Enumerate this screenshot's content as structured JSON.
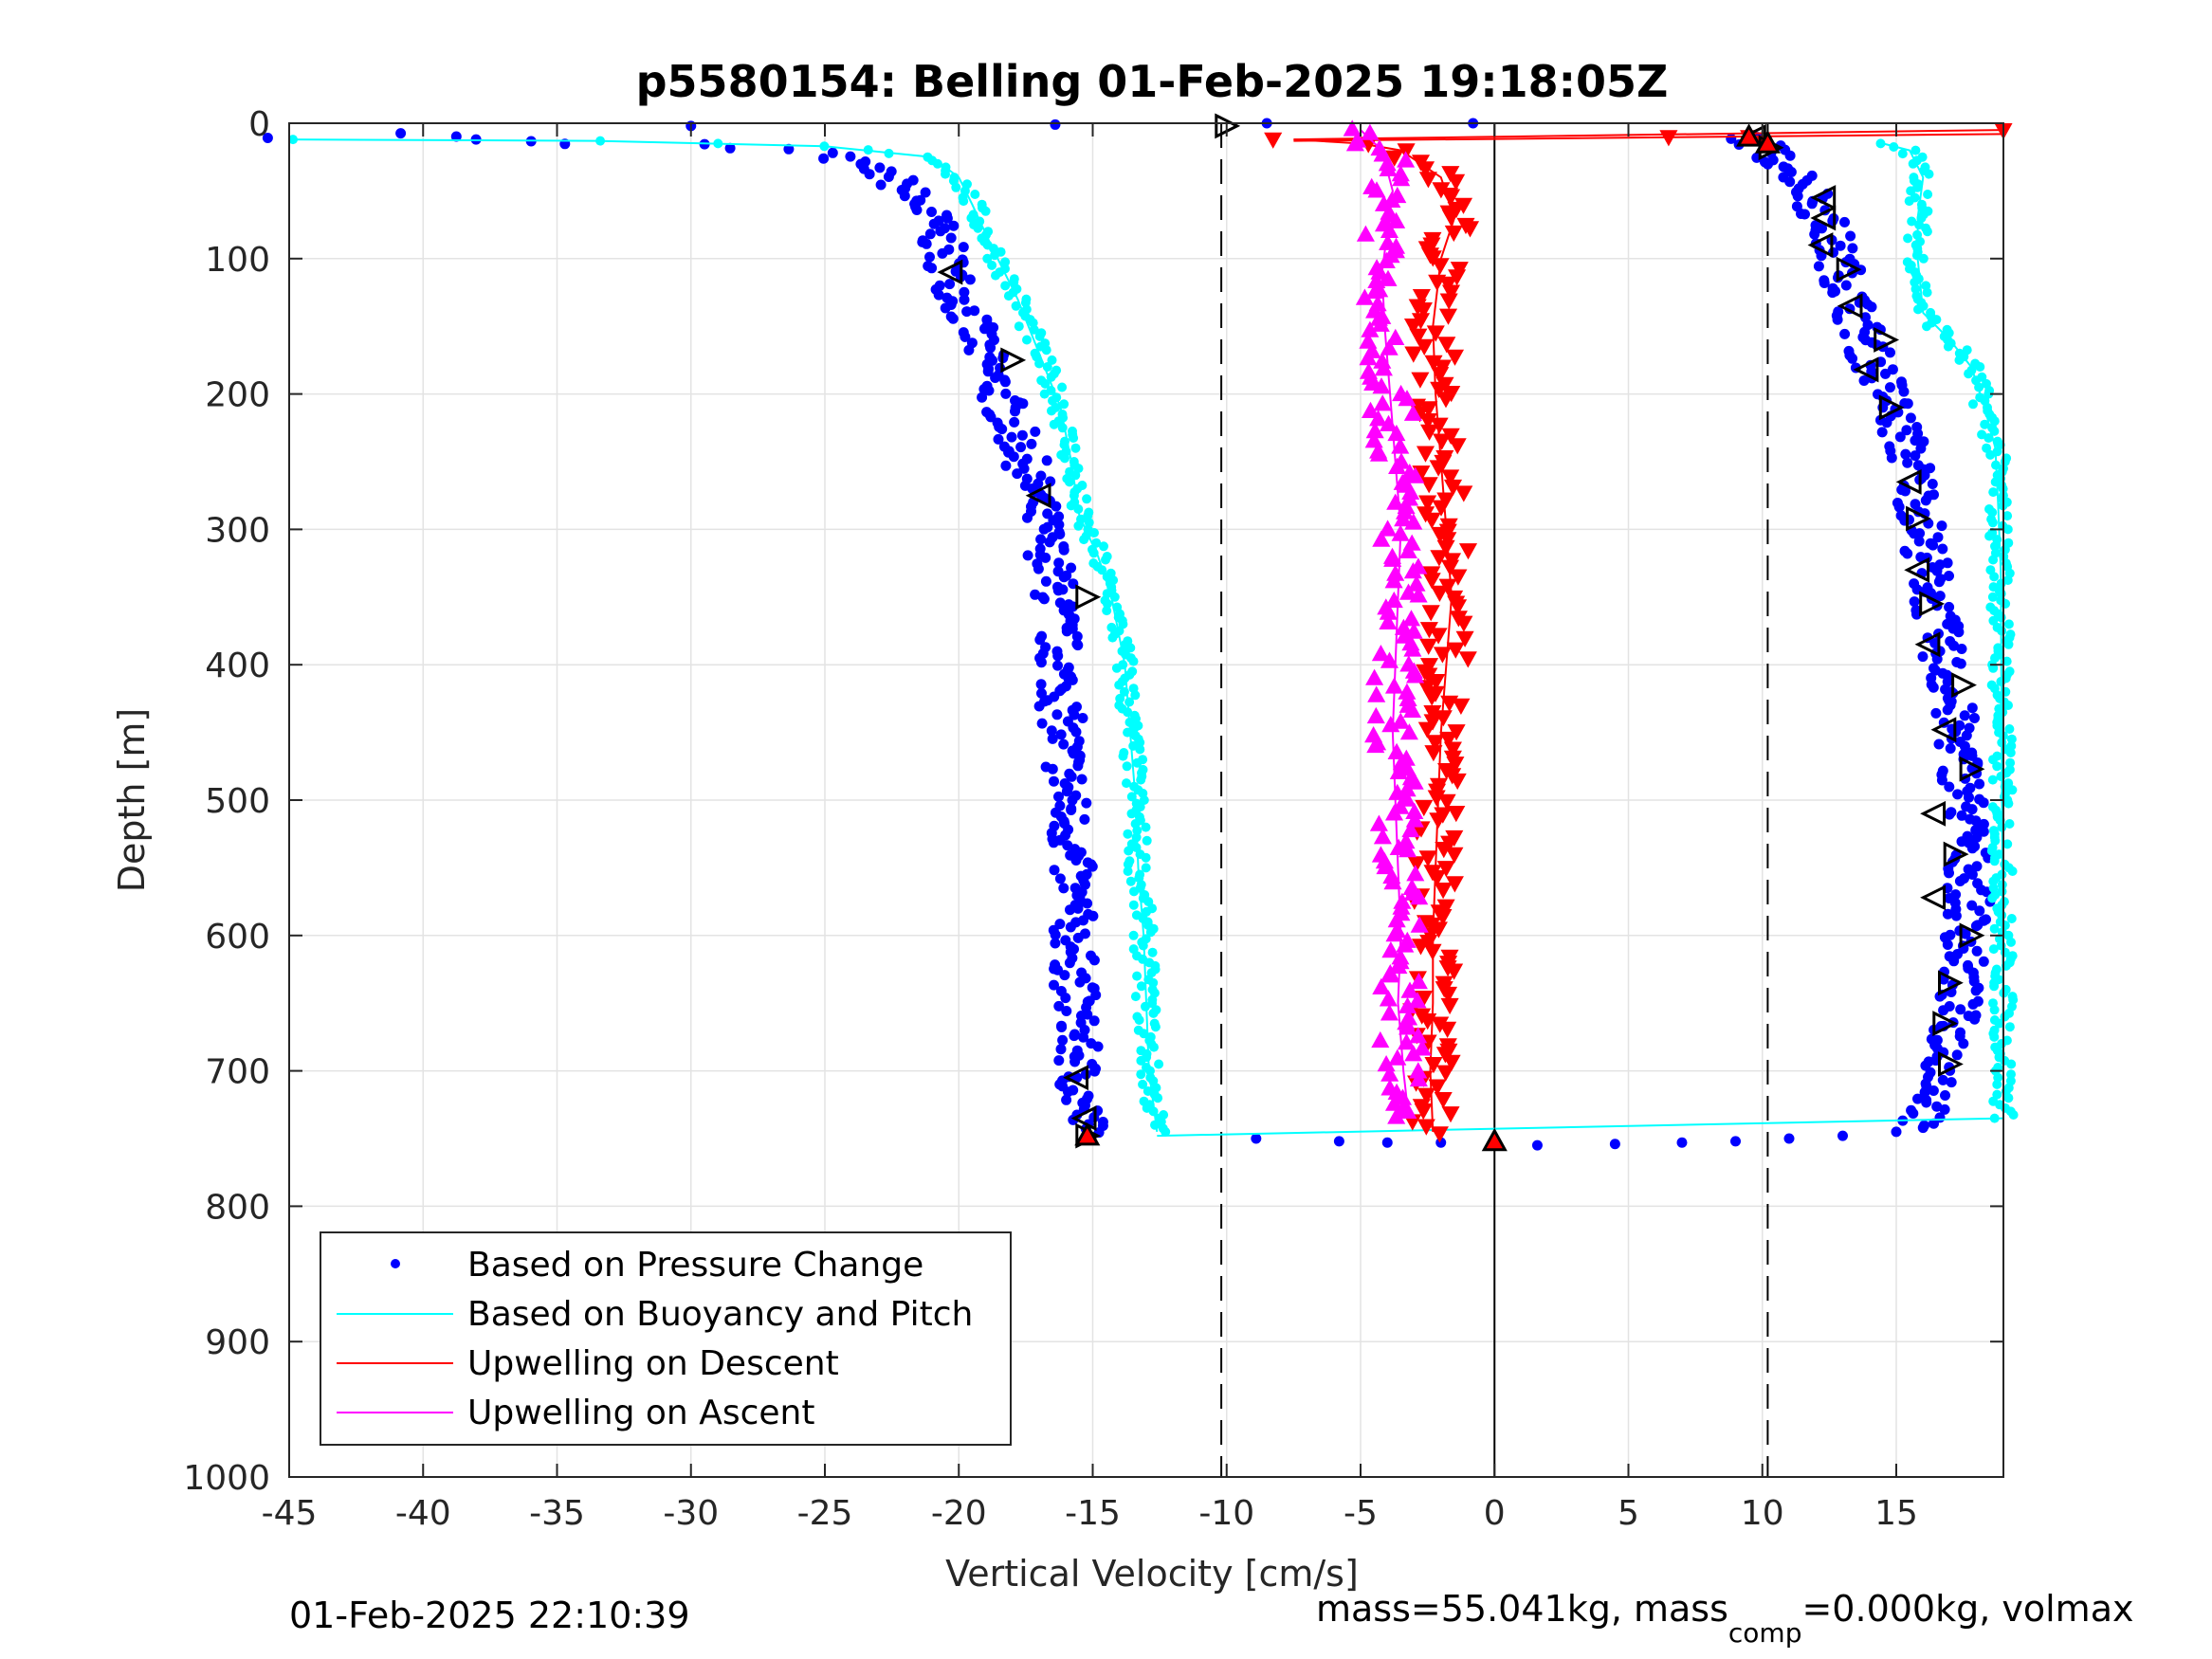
{
  "chart_data": {
    "type": "scatter",
    "title": "p5580154: Belling 01-Feb-2025 19:18:05Z",
    "xlabel": "Vertical Velocity [cm/s]",
    "ylabel": "Depth [m]",
    "xlim": [
      -45,
      19
    ],
    "ylim": [
      0,
      1000
    ],
    "y_reversed": true,
    "grid": true,
    "legend_position": "bottom-left",
    "x_ticks": [
      "-45",
      "-40",
      "-35",
      "-30",
      "-25",
      "-20",
      "-15",
      "-10",
      "-5",
      "0",
      "5",
      "10",
      "15"
    ],
    "y_ticks": [
      "0",
      "100",
      "200",
      "300",
      "400",
      "500",
      "600",
      "700",
      "800",
      "900",
      "1000"
    ],
    "reference_lines": [
      {
        "x": -10.2,
        "style": "dashed"
      },
      {
        "x": 10.2,
        "style": "dashed"
      },
      {
        "x": 0,
        "style": "solid"
      }
    ],
    "legend": [
      {
        "label": "Based on Pressure Change",
        "color": "#0000ff",
        "marker": "dot"
      },
      {
        "label": "Based on Buoyancy and Pitch",
        "color": "#00ffff",
        "marker": "line"
      },
      {
        "label": "Upwelling on Descent",
        "color": "#ff0000",
        "marker": "line"
      },
      {
        "label": "Upwelling on Ascent",
        "color": "#ff00ff",
        "marker": "line"
      }
    ],
    "series": [
      {
        "name": "Based on Pressure Change",
        "color": "#0000ff",
        "profile": [
          [
            -45,
            10
          ],
          [
            -40.5,
            8
          ],
          [
            -35,
            15
          ],
          [
            -30,
            16
          ],
          [
            -25,
            22
          ],
          [
            -22.5,
            40
          ],
          [
            -21,
            70
          ],
          [
            -20.3,
            110
          ],
          [
            -19.5,
            150
          ],
          [
            -18.5,
            200
          ],
          [
            -17.5,
            250
          ],
          [
            -17,
            290
          ],
          [
            -16.5,
            330
          ],
          [
            -16.3,
            380
          ],
          [
            -16.2,
            430
          ],
          [
            -16,
            480
          ],
          [
            -15.8,
            550
          ],
          [
            -15.7,
            620
          ],
          [
            -15.6,
            680
          ],
          [
            -15.5,
            720
          ],
          [
            -15.2,
            745
          ]
        ],
        "ascent_profile": [
          [
            9.5,
            10
          ],
          [
            10.5,
            25
          ],
          [
            11.5,
            40
          ],
          [
            12.3,
            70
          ],
          [
            12.8,
            100
          ],
          [
            13.5,
            140
          ],
          [
            14,
            170
          ],
          [
            14.7,
            200
          ],
          [
            15.2,
            230
          ],
          [
            15.7,
            260
          ],
          [
            16,
            300
          ],
          [
            16.3,
            340
          ],
          [
            16.6,
            380
          ],
          [
            17,
            420
          ],
          [
            17.3,
            460
          ],
          [
            17.6,
            500
          ],
          [
            17.7,
            540
          ],
          [
            17.7,
            580
          ],
          [
            17.5,
            620
          ],
          [
            17.2,
            660
          ],
          [
            16.8,
            700
          ],
          [
            16.3,
            730
          ],
          [
            15.5,
            740
          ]
        ],
        "surface_points": [
          [
            -16.4,
            1
          ],
          [
            -30,
            2
          ],
          [
            -8.5,
            0
          ],
          [
            -0.8,
            0
          ]
        ],
        "bottom_points": [
          [
            -8.9,
            750
          ],
          [
            -5.8,
            752
          ],
          [
            -4,
            753
          ],
          [
            -2,
            753
          ],
          [
            1.6,
            755
          ],
          [
            4.5,
            754
          ],
          [
            7,
            753
          ],
          [
            9,
            752
          ],
          [
            11,
            750
          ],
          [
            13,
            748
          ],
          [
            15,
            745
          ],
          [
            16,
            742
          ]
        ]
      },
      {
        "name": "Based on Buoyancy and Pitch",
        "color": "#00ffff",
        "profile": [
          [
            -45,
            12
          ],
          [
            -33.5,
            13
          ],
          [
            -25,
            17
          ],
          [
            -21,
            25
          ],
          [
            -20,
            40
          ],
          [
            -19.5,
            60
          ],
          [
            -18.8,
            90
          ],
          [
            -17.8,
            130
          ],
          [
            -17,
            170
          ],
          [
            -16.2,
            210
          ],
          [
            -15.8,
            250
          ],
          [
            -15.5,
            290
          ],
          [
            -14.8,
            320
          ],
          [
            -14.3,
            350
          ],
          [
            -13.8,
            400
          ],
          [
            -13.6,
            450
          ],
          [
            -13.4,
            500
          ],
          [
            -13.3,
            550
          ],
          [
            -13.1,
            600
          ],
          [
            -13,
            650
          ],
          [
            -12.9,
            700
          ],
          [
            -12.7,
            730
          ],
          [
            -12.6,
            745
          ]
        ],
        "ascent_profile": [
          [
            14.5,
            15
          ],
          [
            15.5,
            20
          ],
          [
            16,
            40
          ],
          [
            15.8,
            70
          ],
          [
            15.8,
            100
          ],
          [
            16,
            140
          ],
          [
            17,
            160
          ],
          [
            17.8,
            180
          ],
          [
            18.3,
            210
          ],
          [
            18.7,
            240
          ],
          [
            18.8,
            280
          ],
          [
            18.9,
            330
          ],
          [
            19,
            700
          ],
          [
            19,
            735
          ]
        ]
      },
      {
        "name": "Upwelling on Descent",
        "color": "#ff0000",
        "profile": [
          [
            -7.5,
            12
          ],
          [
            -5,
            15
          ],
          [
            -3.5,
            20
          ],
          [
            -2,
            40
          ],
          [
            -1.5,
            70
          ],
          [
            -2,
            100
          ],
          [
            -2.3,
            150
          ],
          [
            -2.2,
            200
          ],
          [
            -2,
            250
          ],
          [
            -1.8,
            300
          ],
          [
            -1.6,
            350
          ],
          [
            -1.8,
            400
          ],
          [
            -2,
            450
          ],
          [
            -2.1,
            500
          ],
          [
            -2.2,
            550
          ],
          [
            -2.3,
            600
          ],
          [
            -2.3,
            650
          ],
          [
            -2.4,
            700
          ],
          [
            -2.3,
            745
          ]
        ],
        "surface_points": [
          [
            6.5,
            10
          ],
          [
            9.5,
            10
          ],
          [
            10,
            15
          ],
          [
            19,
            5
          ]
        ]
      },
      {
        "name": "Upwelling on Ascent",
        "color": "#ff00ff",
        "profile": [
          [
            -5,
            5
          ],
          [
            -4.2,
            20
          ],
          [
            -3.8,
            50
          ],
          [
            -4,
            80
          ],
          [
            -4.2,
            110
          ],
          [
            -4.1,
            150
          ],
          [
            -3.9,
            200
          ],
          [
            -3.7,
            250
          ],
          [
            -3.5,
            300
          ],
          [
            -3.6,
            350
          ],
          [
            -3.7,
            400
          ],
          [
            -3.8,
            450
          ],
          [
            -3.7,
            500
          ],
          [
            -3.6,
            550
          ],
          [
            -3.5,
            600
          ],
          [
            -3.6,
            650
          ],
          [
            -3.4,
            700
          ],
          [
            -3.2,
            735
          ]
        ]
      }
    ],
    "triangle_markers": [
      [
        -10,
        2,
        "right"
      ],
      [
        -20.3,
        110,
        "left"
      ],
      [
        -18,
        175,
        "right"
      ],
      [
        -17,
        275,
        "left"
      ],
      [
        -15.2,
        350,
        "right"
      ],
      [
        -15.6,
        705,
        "left"
      ],
      [
        -15.3,
        735,
        "left"
      ],
      [
        -15.2,
        748,
        "right"
      ],
      [
        9.7,
        10,
        "left"
      ],
      [
        10.3,
        18,
        "right"
      ],
      [
        12.3,
        55,
        "left"
      ],
      [
        12.3,
        70,
        "left"
      ],
      [
        12.2,
        90,
        "left"
      ],
      [
        13.2,
        108,
        "right"
      ],
      [
        13.3,
        135,
        "left"
      ],
      [
        14.6,
        160,
        "right"
      ],
      [
        13.9,
        182,
        "left"
      ],
      [
        14.8,
        210,
        "right"
      ],
      [
        15.5,
        265,
        "left"
      ],
      [
        15.8,
        292,
        "right"
      ],
      [
        15.8,
        330,
        "left"
      ],
      [
        16.3,
        355,
        "right"
      ],
      [
        16.2,
        385,
        "left"
      ],
      [
        17.5,
        415,
        "right"
      ],
      [
        16.8,
        448,
        "left"
      ],
      [
        17.8,
        477,
        "right"
      ],
      [
        16.4,
        510,
        "left"
      ],
      [
        17.2,
        540,
        "right"
      ],
      [
        16.4,
        572,
        "left"
      ],
      [
        17.8,
        600,
        "right"
      ],
      [
        17,
        635,
        "right"
      ],
      [
        16.8,
        665,
        "right"
      ],
      [
        17,
        695,
        "right"
      ]
    ],
    "red_triangles": [
      [
        -15.2,
        748
      ],
      [
        9.5,
        10
      ],
      [
        10.2,
        15
      ],
      [
        0,
        752
      ]
    ],
    "footer_left": "01-Feb-2025 22:10:39",
    "footer_right_prefix": "mass=55.041kg, mass",
    "footer_right_sub": "comp",
    "footer_right_suffix": "=0.000kg, volmax"
  }
}
